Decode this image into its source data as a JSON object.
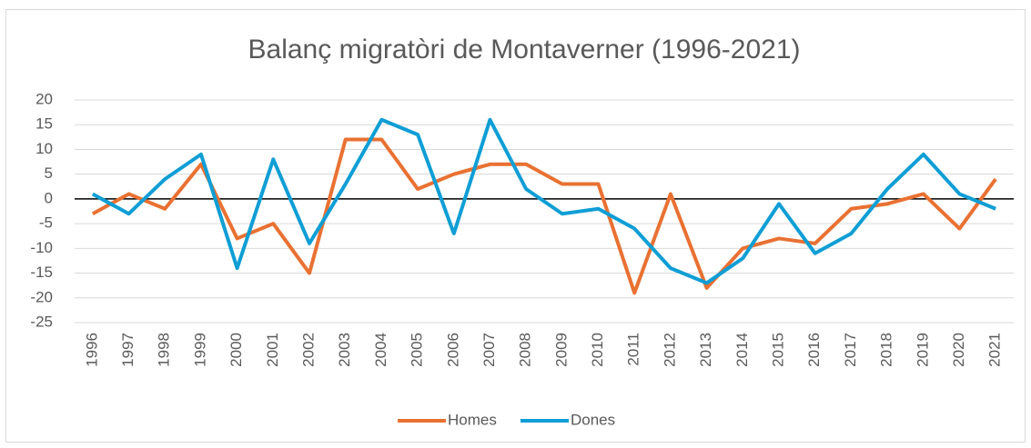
{
  "chart_data": {
    "type": "line",
    "title": "Balanç migratòri de Montaverner (1996-2021)",
    "categories": [
      "1996",
      "1997",
      "1998",
      "1999",
      "2000",
      "2001",
      "2002",
      "2003",
      "2004",
      "2005",
      "2006",
      "2007",
      "2008",
      "2009",
      "2010",
      "2011",
      "2012",
      "2013",
      "2014",
      "2015",
      "2016",
      "2017",
      "2018",
      "2019",
      "2020",
      "2021"
    ],
    "series": [
      {
        "name": "Homes",
        "color": "#E97132",
        "values": [
          -3,
          1,
          -2,
          7,
          -8,
          -5,
          -15,
          12,
          12,
          2,
          5,
          7,
          7,
          3,
          3,
          -19,
          1,
          -18,
          -10,
          -8,
          -9,
          -2,
          -1,
          1,
          -6,
          4
        ]
      },
      {
        "name": "Dones",
        "color": "#0F9ED5",
        "values": [
          1,
          -3,
          4,
          9,
          -14,
          8,
          -9,
          3,
          16,
          13,
          -7,
          16,
          2,
          -3,
          -2,
          -6,
          -14,
          -17,
          -12,
          -1,
          -11,
          -7,
          2,
          9,
          1,
          -2
        ]
      }
    ],
    "ylim": [
      -25,
      20
    ],
    "yticks": [
      -25,
      -20,
      -15,
      -10,
      -5,
      0,
      5,
      10,
      15,
      20
    ],
    "grid": true,
    "legend": "bottom"
  }
}
